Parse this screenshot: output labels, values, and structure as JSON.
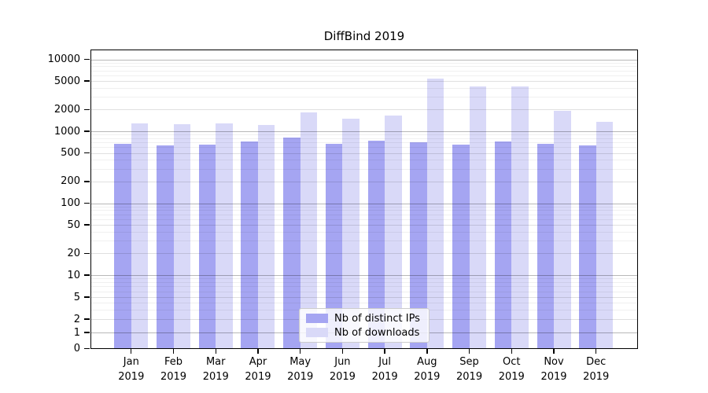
{
  "chart_data": {
    "type": "bar",
    "title": "DiffBind 2019",
    "categories": [
      "Jan",
      "Feb",
      "Mar",
      "Apr",
      "May",
      "Jun",
      "Jul",
      "Aug",
      "Sep",
      "Oct",
      "Nov",
      "Dec"
    ],
    "year_label": "2019",
    "series": [
      {
        "name": "Nb of distinct IPs",
        "color": "#a5a5f2",
        "values": [
          675,
          642,
          655,
          713,
          818,
          668,
          734,
          704,
          655,
          720,
          673,
          631
        ]
      },
      {
        "name": "Nb of downloads",
        "color": "#d9d9f8",
        "values": [
          1277,
          1246,
          1296,
          1215,
          1828,
          1507,
          1665,
          5440,
          4230,
          4230,
          1925,
          1342
        ]
      }
    ],
    "y_ticks": [
      0,
      1,
      2,
      5,
      10,
      20,
      50,
      100,
      200,
      500,
      1000,
      2000,
      5000,
      10000
    ],
    "y_scale": "symlog",
    "grid": true,
    "legend_position": "lower center",
    "axis_color": "#000000",
    "major_grid_values": [
      1,
      10,
      100,
      1000,
      10000
    ]
  }
}
